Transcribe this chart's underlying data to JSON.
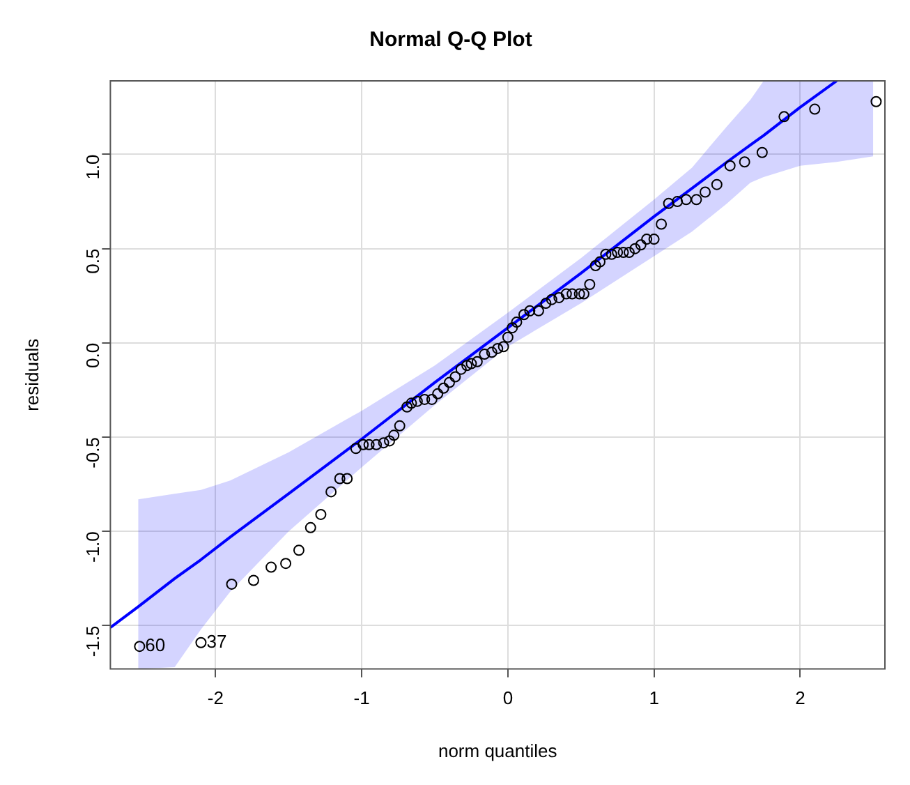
{
  "chart_data": {
    "type": "scatter",
    "title": "Normal Q-Q Plot",
    "xlabel": "norm quantiles",
    "ylabel": "residuals",
    "xlim": [
      -2.72,
      2.58
    ],
    "xticks": [
      -2,
      -1,
      0,
      1,
      2
    ],
    "ylim": [
      -1.73,
      1.39
    ],
    "yticks": [
      {
        "value": -1.5,
        "label": "-1.5"
      },
      {
        "value": -1,
        "label": "-1.0"
      },
      {
        "value": -0.5,
        "label": "-0.5"
      },
      {
        "value": 0,
        "label": "0.0"
      },
      {
        "value": 0.5,
        "label": "0.5"
      },
      {
        "value": 1,
        "label": "1.0"
      }
    ],
    "grid": true,
    "legend": false,
    "marker": "circle",
    "annotations": [
      {
        "text": "60",
        "x": -2.52,
        "y": -1.61
      },
      {
        "text": "37",
        "x": -2.1,
        "y": -1.59
      }
    ],
    "series": [
      {
        "type": "line",
        "color": "#0000ff",
        "marker": "none",
        "x": [
          -2.72,
          -2.53,
          -2.28,
          -2.1,
          -1.9,
          -1.5,
          -1,
          -0.5,
          0,
          0.5,
          1,
          1.26,
          1.5,
          1.66,
          1.75,
          2.0,
          2.25,
          2.5
        ],
        "values": [
          -1.51,
          -1.4,
          -1.25,
          -1.15,
          -1.03,
          -0.8,
          -0.51,
          -0.21,
          0.08,
          0.37,
          0.67,
          0.82,
          0.96,
          1.05,
          1.1,
          1.25,
          1.39,
          null
        ],
        "lower": [
          null,
          -1.73,
          -1.72,
          -1.52,
          -1.32,
          -1.0,
          -0.66,
          -0.33,
          -0.02,
          0.21,
          0.46,
          0.59,
          0.74,
          0.85,
          0.88,
          0.94,
          0.96,
          0.99
        ],
        "upper": [
          null,
          -0.83,
          -0.8,
          -0.78,
          -0.73,
          -0.58,
          -0.36,
          -0.12,
          0.16,
          0.45,
          0.76,
          0.93,
          1.15,
          1.29,
          1.39,
          1.39,
          1.39,
          1.39
        ]
      },
      {
        "color": "#000000",
        "x": [
          -2.52,
          -2.1,
          -1.89,
          -1.74,
          -1.62,
          -1.52,
          -1.43,
          -1.35,
          -1.28,
          -1.21,
          -1.15,
          -1.1,
          -1.04,
          -0.99,
          -0.95,
          -0.9,
          -0.85,
          -0.81,
          -0.78,
          -0.74,
          -0.69,
          -0.66,
          -0.62,
          -0.57,
          -0.52,
          -0.48,
          -0.44,
          -0.4,
          -0.36,
          -0.32,
          -0.28,
          -0.25,
          -0.21,
          -0.16,
          -0.11,
          -0.07,
          -0.03,
          0.0,
          0.03,
          0.06,
          0.11,
          0.15,
          0.21,
          0.26,
          0.3,
          0.35,
          0.4,
          0.44,
          0.49,
          0.52,
          0.56,
          0.6,
          0.63,
          0.67,
          0.71,
          0.75,
          0.79,
          0.83,
          0.87,
          0.91,
          0.95,
          1.0,
          1.05,
          1.1,
          1.16,
          1.22,
          1.29,
          1.35,
          1.43,
          1.52,
          1.62,
          1.74,
          1.89,
          2.1,
          2.52
        ],
        "values": [
          -1.61,
          -1.59,
          -1.28,
          -1.26,
          -1.19,
          -1.17,
          -1.1,
          -0.98,
          -0.91,
          -0.79,
          -0.72,
          -0.72,
          -0.56,
          -0.54,
          -0.54,
          -0.54,
          -0.53,
          -0.52,
          -0.49,
          -0.44,
          -0.34,
          -0.32,
          -0.31,
          -0.3,
          -0.3,
          -0.27,
          -0.24,
          -0.21,
          -0.18,
          -0.14,
          -0.12,
          -0.11,
          -0.1,
          -0.06,
          -0.05,
          -0.03,
          -0.02,
          0.03,
          0.08,
          0.11,
          0.15,
          0.17,
          0.17,
          0.21,
          0.23,
          0.24,
          0.26,
          0.26,
          0.26,
          0.26,
          0.31,
          0.41,
          0.43,
          0.47,
          0.47,
          0.48,
          0.48,
          0.48,
          0.5,
          0.52,
          0.55,
          0.55,
          0.63,
          0.74,
          0.75,
          0.76,
          0.76,
          0.8,
          0.84,
          0.94,
          0.96,
          1.01,
          1.2,
          1.24,
          1.28
        ]
      }
    ]
  }
}
